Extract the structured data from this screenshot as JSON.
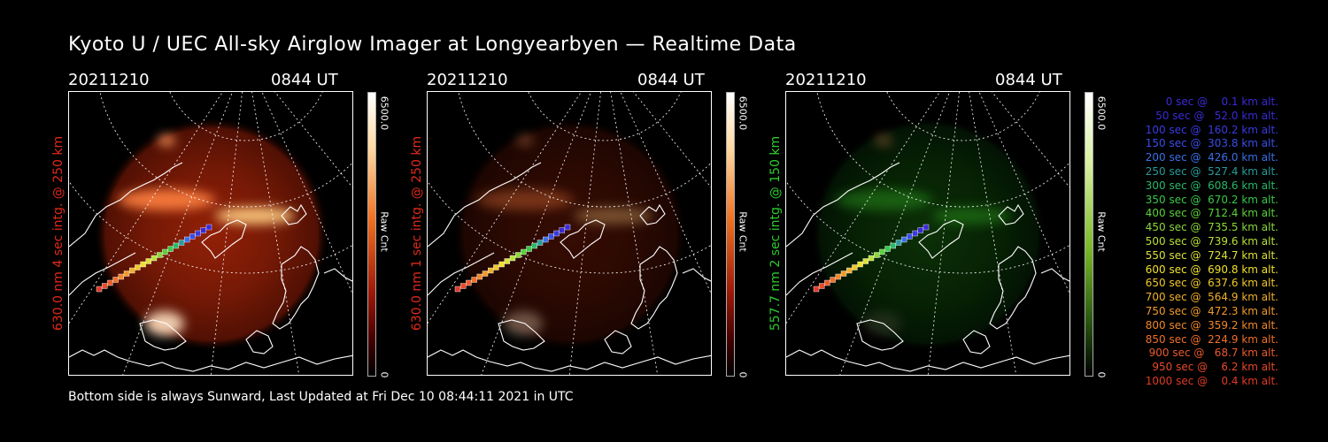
{
  "title": "Kyoto U / UEC All-sky Airglow Imager at Longyearbyen — Realtime Data",
  "panels": [
    {
      "date": "20211210",
      "time": "0844 UT",
      "side_label": "630.0 nm 4 sec intg. @ 250 km",
      "label_color": "#e02a1a",
      "scale_max": "6500.0",
      "scale_unit": "Raw Cnt",
      "scale_min": "0",
      "palette": "red",
      "brightness": 0.95
    },
    {
      "date": "20211210",
      "time": "0844 UT",
      "side_label": "630.0 nm 1 sec intg. @ 250 km",
      "label_color": "#e02a1a",
      "scale_max": "6500.0",
      "scale_unit": "Raw Cnt",
      "scale_min": "0",
      "palette": "red",
      "brightness": 0.35
    },
    {
      "date": "20211210",
      "time": "0844 UT",
      "side_label": "557.7 nm 2 sec intg. @ 150 km",
      "label_color": "#2ecc2e",
      "scale_max": "6500.0",
      "scale_unit": "Raw Cnt",
      "scale_min": "0",
      "palette": "green",
      "brightness": 0.45
    }
  ],
  "trajectory_legend": [
    {
      "text": "0 sec @    0.1 km alt.",
      "color": "#3a2ad6"
    },
    {
      "text": "50 sec @   52.0 km alt.",
      "color": "#3a2ad6"
    },
    {
      "text": "100 sec @  160.2 km alt.",
      "color": "#3a3ae0"
    },
    {
      "text": "150 sec @  303.8 km alt.",
      "color": "#3a4ee8"
    },
    {
      "text": "200 sec @  426.0 km alt.",
      "color": "#3a70e8"
    },
    {
      "text": "250 sec @  527.4 km alt.",
      "color": "#2a9a9a"
    },
    {
      "text": "300 sec @  608.6 km alt.",
      "color": "#2ab86a"
    },
    {
      "text": "350 sec @  670.2 km alt.",
      "color": "#3ac84a"
    },
    {
      "text": "400 sec @  712.4 km alt.",
      "color": "#5ad03a"
    },
    {
      "text": "450 sec @  735.5 km alt.",
      "color": "#8ad83a"
    },
    {
      "text": "500 sec @  739.6 km alt.",
      "color": "#b8e03a"
    },
    {
      "text": "550 sec @  724.7 km alt.",
      "color": "#dce03a"
    },
    {
      "text": "600 sec @  690.8 km alt.",
      "color": "#f0e02a"
    },
    {
      "text": "650 sec @  637.6 km alt.",
      "color": "#f0c82a"
    },
    {
      "text": "700 sec @  564.9 km alt.",
      "color": "#f0b02a"
    },
    {
      "text": "750 sec @  472.3 km alt.",
      "color": "#f09a2a"
    },
    {
      "text": "800 sec @  359.2 km alt.",
      "color": "#f0882a"
    },
    {
      "text": "850 sec @  224.9 km alt.",
      "color": "#f0702a"
    },
    {
      "text": "900 sec @   68.7 km alt.",
      "color": "#ec5a2a"
    },
    {
      "text": "950 sec @    6.2 km alt.",
      "color": "#e84a2a"
    },
    {
      "text": "1000 sec @    0.4 km alt.",
      "color": "#e03a2a"
    }
  ],
  "footer": "Bottom side is always Sunward, Last Updated at Fri Dec 10 08:44:11 2021 in UTC"
}
